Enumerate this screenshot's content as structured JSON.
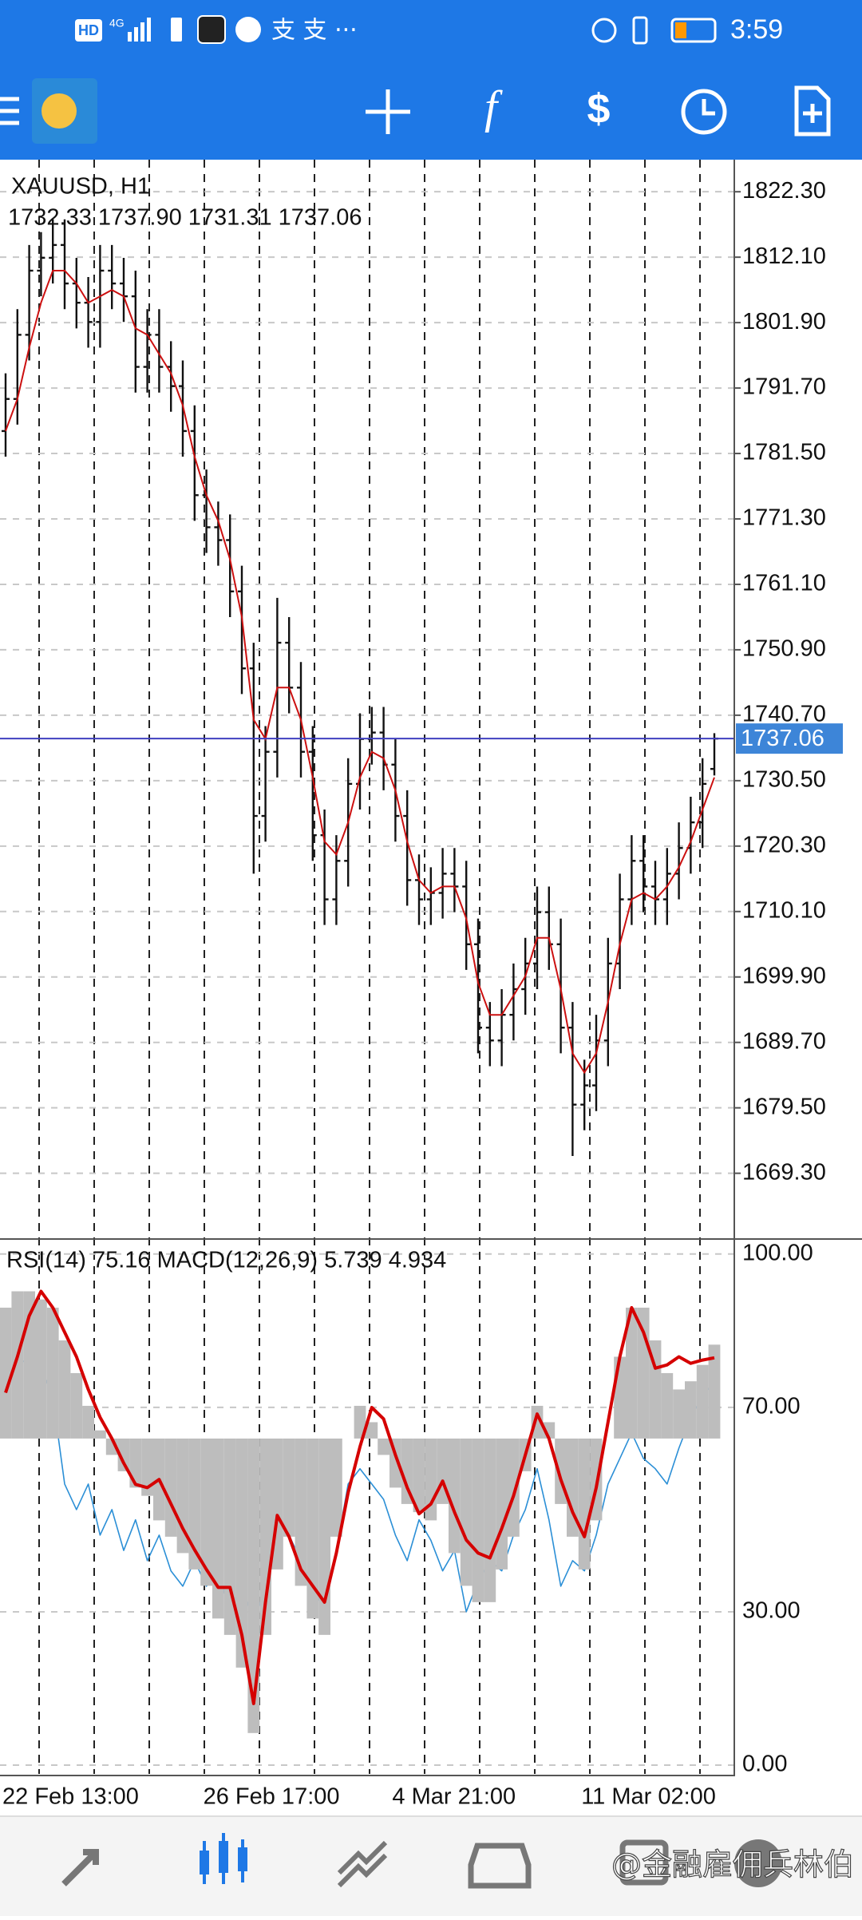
{
  "status_bar": {
    "network": "HD",
    "signal": "4G",
    "notifications": "支 支 ···",
    "time": "3:59"
  },
  "watermark": "@金融雇佣兵林伯",
  "chart_data": [
    {
      "type": "candlestick",
      "title": "XAUUSD, H1",
      "subtitle": "1732.33 1737.90 1731.31 1737.06",
      "categories": [
        "22 Feb 13:00",
        null,
        null,
        null,
        null,
        null,
        null,
        null,
        null,
        null,
        null,
        null,
        null,
        null,
        null,
        null,
        null,
        "26 Feb 17:00",
        null,
        null,
        null,
        null,
        null,
        null,
        null,
        null,
        null,
        null,
        null,
        null,
        null,
        null,
        null,
        "4 Mar 21:00",
        null,
        null,
        null,
        null,
        null,
        null,
        null,
        null,
        null,
        null,
        null,
        null,
        null,
        null,
        null,
        "11 Mar 02:00",
        null,
        null,
        null,
        null,
        null,
        null,
        null,
        null,
        null,
        null,
        null
      ],
      "open": [
        1785,
        1790,
        1800,
        1810,
        1812,
        1814,
        1808,
        1805,
        1802,
        1810,
        1808,
        1806,
        1795,
        1800,
        1795,
        1792,
        1785,
        1775,
        1770,
        1768,
        1760,
        1748,
        1725,
        1735,
        1752,
        1745,
        1735,
        1722,
        1712,
        1718,
        1730,
        1737,
        1738,
        1733,
        1725,
        1715,
        1712,
        1713,
        1716,
        1714,
        1705,
        1692,
        1690,
        1694,
        1698,
        1702,
        1710,
        1705,
        1692,
        1680,
        1683,
        1690,
        1702,
        1712,
        1718,
        1714,
        1712,
        1716,
        1720,
        1724,
        1732.33
      ],
      "high": [
        1794,
        1804,
        1814,
        1816,
        1818,
        1818,
        1812,
        1809,
        1814,
        1814,
        1812,
        1810,
        1804,
        1804,
        1799,
        1796,
        1789,
        1779,
        1774,
        1772,
        1764,
        1752,
        1739,
        1759,
        1756,
        1749,
        1739,
        1726,
        1722,
        1734,
        1741,
        1742,
        1742,
        1737,
        1729,
        1719,
        1717,
        1720,
        1720,
        1718,
        1709,
        1696,
        1698,
        1702,
        1706,
        1714,
        1714,
        1709,
        1696,
        1687,
        1694,
        1706,
        1716,
        1722,
        1722,
        1718,
        1720,
        1724,
        1728,
        1734,
        1737.9
      ],
      "low": [
        1781,
        1786,
        1796,
        1806,
        1808,
        1804,
        1801,
        1798,
        1798,
        1804,
        1802,
        1791,
        1791,
        1791,
        1788,
        1781,
        1771,
        1766,
        1764,
        1756,
        1744,
        1716,
        1721,
        1731,
        1741,
        1731,
        1718,
        1708,
        1708,
        1714,
        1726,
        1733,
        1729,
        1721,
        1711,
        1708,
        1708,
        1709,
        1710,
        1701,
        1688,
        1686,
        1686,
        1690,
        1694,
        1698,
        1701,
        1688,
        1672,
        1676,
        1679,
        1686,
        1698,
        1708,
        1710,
        1708,
        1708,
        1712,
        1716,
        1720,
        1731.31
      ],
      "close": [
        1790,
        1800,
        1810,
        1812,
        1814,
        1808,
        1805,
        1802,
        1810,
        1808,
        1806,
        1795,
        1800,
        1795,
        1792,
        1785,
        1775,
        1770,
        1768,
        1760,
        1748,
        1725,
        1735,
        1752,
        1745,
        1735,
        1722,
        1712,
        1718,
        1730,
        1737,
        1738,
        1733,
        1725,
        1715,
        1712,
        1713,
        1716,
        1714,
        1705,
        1692,
        1690,
        1694,
        1698,
        1702,
        1710,
        1705,
        1692,
        1680,
        1683,
        1690,
        1702,
        1712,
        1718,
        1714,
        1712,
        1716,
        1720,
        1724,
        1730,
        1737.06
      ],
      "ma": {
        "color": "#cc1010",
        "values": [
          1785,
          1790,
          1798,
          1805,
          1810,
          1810,
          1808,
          1805,
          1806,
          1807,
          1806,
          1801,
          1800,
          1797,
          1794,
          1789,
          1781,
          1775,
          1771,
          1765,
          1756,
          1740,
          1737,
          1745,
          1745,
          1740,
          1731,
          1721,
          1719,
          1724,
          1731,
          1735,
          1734,
          1729,
          1721,
          1715,
          1713,
          1714,
          1714,
          1709,
          1699,
          1694,
          1694,
          1697,
          1700,
          1706,
          1706,
          1698,
          1688,
          1685,
          1688,
          1696,
          1705,
          1712,
          1713,
          1712,
          1714,
          1717,
          1721,
          1726,
          1731
        ]
      },
      "bar_color": "#111111",
      "last_price": 1737.06,
      "last_price_color": "#3d85d8",
      "grid": true,
      "ylim": [
        1659.3,
        1827.3
      ],
      "yticks": [
        {
          "value": 1822.3,
          "label": "1822.30"
        },
        {
          "value": 1812.1,
          "label": "1812.10"
        },
        {
          "value": 1801.9,
          "label": "1801.90"
        },
        {
          "value": 1791.7,
          "label": "1791.70"
        },
        {
          "value": 1781.5,
          "label": "1781.50"
        },
        {
          "value": 1771.3,
          "label": "1771.30"
        },
        {
          "value": 1761.1,
          "label": "1761.10"
        },
        {
          "value": 1750.9,
          "label": "1750.90"
        },
        {
          "value": 1740.7,
          "label": "1740.70"
        },
        {
          "value": 1730.5,
          "label": "1730.50"
        },
        {
          "value": 1720.3,
          "label": "1720.30"
        },
        {
          "value": 1710.1,
          "label": "1710.10"
        },
        {
          "value": 1699.9,
          "label": "1699.90"
        },
        {
          "value": 1689.7,
          "label": "1689.70"
        },
        {
          "value": 1679.5,
          "label": "1679.50"
        },
        {
          "value": 1669.3,
          "label": "1669.30"
        }
      ]
    },
    {
      "type": "indicator",
      "title": "RSI(14) 75.16 MACD(12,26,9) 5.739 4.934",
      "grid": true,
      "ylim": [
        -1.4,
        102.3
      ],
      "yticks": [
        {
          "value": 100,
          "label": "100.00"
        },
        {
          "value": 70,
          "label": "70.00"
        },
        {
          "value": 30,
          "label": "30.00"
        },
        {
          "value": 0,
          "label": "0.00"
        }
      ],
      "y2lim": [
        -20.4,
        12
      ],
      "series": [
        {
          "type": "line",
          "color": "#2b8fd6",
          "values": [
            75,
            78,
            80,
            78,
            72,
            55,
            50,
            55,
            45,
            50,
            42,
            48,
            40,
            45,
            38,
            35,
            40,
            35,
            38,
            30,
            35,
            28,
            35,
            48,
            45,
            40,
            35,
            30,
            42,
            55,
            58,
            55,
            52,
            45,
            40,
            48,
            44,
            38,
            42,
            30,
            36,
            40,
            38,
            45,
            50,
            58,
            48,
            35,
            40,
            38,
            45,
            55,
            60,
            65,
            60,
            58,
            55,
            62,
            68,
            72,
            75.16
          ]
        },
        {
          "type": "bar",
          "axis": "y2",
          "color": "#bdbdbd",
          "values": [
            8,
            9,
            9,
            8.5,
            8,
            6,
            4,
            2,
            0.5,
            -1,
            -2,
            -3,
            -3.5,
            -5,
            -6,
            -7,
            -8,
            -9,
            -11,
            -12,
            -14,
            -18,
            -12,
            -8,
            -6,
            -9,
            -11,
            -12,
            -6,
            0,
            2,
            1,
            -1,
            -3,
            -4,
            -4.5,
            -5,
            -4,
            -7,
            -9,
            -10,
            -10,
            -8,
            -6,
            -2,
            2,
            1,
            -4,
            -6,
            -8,
            -5,
            0,
            5,
            8,
            8,
            6,
            4,
            3,
            3.5,
            4.5,
            5.739
          ]
        },
        {
          "type": "line",
          "axis": "y2",
          "color": "#d50000",
          "values": [
            2.8,
            5,
            7.5,
            9,
            8,
            6.5,
            5,
            3,
            1.3,
            0,
            -1.5,
            -2.8,
            -3,
            -2.5,
            -4,
            -5.5,
            -6.8,
            -8,
            -9.1,
            -9.1,
            -12,
            -16.2,
            -10,
            -4.7,
            -6,
            -8,
            -9,
            -10,
            -7,
            -3.3,
            -0.5,
            1.9,
            1.2,
            -1,
            -3,
            -4.6,
            -4,
            -2.6,
            -4.5,
            -6.2,
            -7,
            -7.3,
            -5.5,
            -3.5,
            -1,
            1.5,
            0,
            -2.5,
            -4.5,
            -6,
            -3,
            1,
            5,
            8,
            6.5,
            4.3,
            4.5,
            5,
            4.6,
            4.8,
            4.934
          ]
        }
      ]
    }
  ]
}
